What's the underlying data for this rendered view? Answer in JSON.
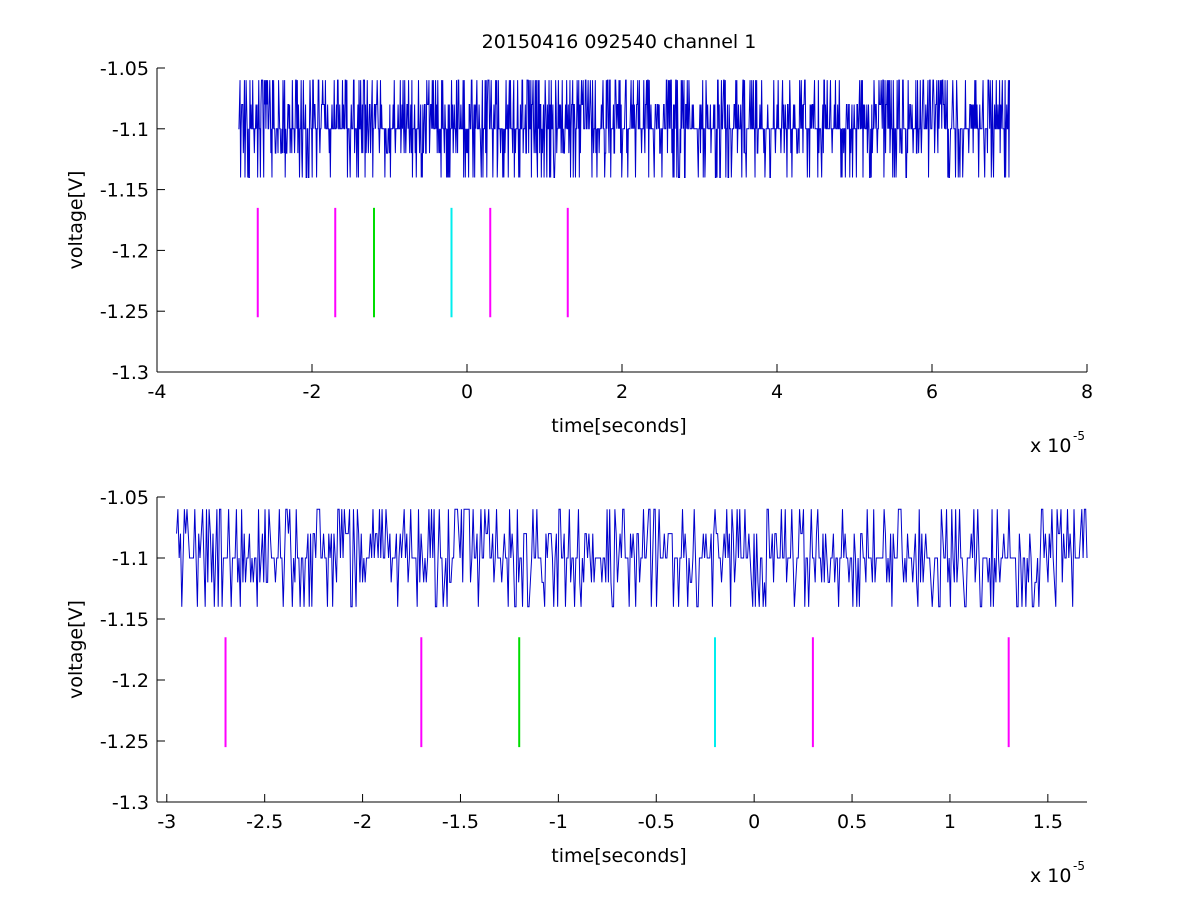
{
  "figure_title": "20150416 092540 channel 1",
  "colors": {
    "signal": "#0000cc",
    "magenta": "#ff00ff",
    "green": "#00dd00",
    "cyan": "#00eeee",
    "axis": "#000000"
  },
  "chart_data": [
    {
      "type": "line",
      "title": "20150416 092540 channel 1",
      "xlabel": "time[seconds]",
      "ylabel": "voltage[V]",
      "x_multiplier_label": "x 10",
      "x_multiplier_exp": "-5",
      "xlim": [
        -4e-05,
        8e-05
      ],
      "ylim": [
        -1.3,
        -1.05
      ],
      "xticks": [
        -4,
        -2,
        0,
        2,
        4,
        6,
        8
      ],
      "xtick_labels": [
        "-4",
        "-2",
        "0",
        "2",
        "4",
        "6",
        "8"
      ],
      "yticks": [
        -1.05,
        -1.1,
        -1.15,
        -1.2,
        -1.25,
        -1.3
      ],
      "ytick_labels": [
        "-1.05",
        "-1.1",
        "-1.15",
        "-1.2",
        "-1.25",
        "-1.3"
      ],
      "series": [
        {
          "kind": "digitized-signal",
          "x_range": [
            -2.95e-05,
            7e-05
          ],
          "levels": [
            -1.14,
            -1.12,
            -1.1,
            -1.08,
            -1.06
          ],
          "baseline": -1.1,
          "color": "#0000cc"
        }
      ],
      "markers": [
        {
          "x": -2.7e-05,
          "y_range": [
            -1.255,
            -1.165
          ],
          "color": "#ff00ff"
        },
        {
          "x": -1.7e-05,
          "y_range": [
            -1.255,
            -1.165
          ],
          "color": "#ff00ff"
        },
        {
          "x": -1.2e-05,
          "y_range": [
            -1.255,
            -1.165
          ],
          "color": "#00dd00"
        },
        {
          "x": -2e-06,
          "y_range": [
            -1.255,
            -1.165
          ],
          "color": "#00eeee"
        },
        {
          "x": 3e-06,
          "y_range": [
            -1.255,
            -1.165
          ],
          "color": "#ff00ff"
        },
        {
          "x": 1.3e-05,
          "y_range": [
            -1.255,
            -1.165
          ],
          "color": "#ff00ff"
        }
      ]
    },
    {
      "type": "line",
      "title": "",
      "xlabel": "time[seconds]",
      "ylabel": "voltage[V]",
      "x_multiplier_label": "x 10",
      "x_multiplier_exp": "-5",
      "xlim": [
        -3.05e-05,
        1.7e-05
      ],
      "ylim": [
        -1.3,
        -1.05
      ],
      "xticks": [
        -3,
        -2.5,
        -2,
        -1.5,
        -1,
        -0.5,
        0,
        0.5,
        1,
        1.5
      ],
      "xtick_labels": [
        "-3",
        "-2.5",
        "-2",
        "-1.5",
        "-1",
        "-0.5",
        "0",
        "0.5",
        "1",
        "1.5"
      ],
      "yticks": [
        -1.05,
        -1.1,
        -1.15,
        -1.2,
        -1.25,
        -1.3
      ],
      "ytick_labels": [
        "-1.05",
        "-1.1",
        "-1.15",
        "-1.2",
        "-1.25",
        "-1.3"
      ],
      "series": [
        {
          "kind": "digitized-signal",
          "x_range": [
            -2.95e-05,
            1.7e-05
          ],
          "levels": [
            -1.14,
            -1.12,
            -1.1,
            -1.08,
            -1.06
          ],
          "baseline": -1.1,
          "color": "#0000cc"
        }
      ],
      "markers": [
        {
          "x": -2.7e-05,
          "y_range": [
            -1.255,
            -1.165
          ],
          "color": "#ff00ff"
        },
        {
          "x": -1.7e-05,
          "y_range": [
            -1.255,
            -1.165
          ],
          "color": "#ff00ff"
        },
        {
          "x": -1.2e-05,
          "y_range": [
            -1.255,
            -1.165
          ],
          "color": "#00dd00"
        },
        {
          "x": -2e-06,
          "y_range": [
            -1.255,
            -1.165
          ],
          "color": "#00eeee"
        },
        {
          "x": 3e-06,
          "y_range": [
            -1.255,
            -1.165
          ],
          "color": "#ff00ff"
        },
        {
          "x": 1.3e-05,
          "y_range": [
            -1.255,
            -1.165
          ],
          "color": "#ff00ff"
        }
      ]
    }
  ]
}
